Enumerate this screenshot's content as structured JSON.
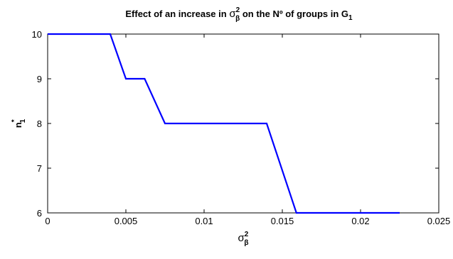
{
  "chart_data": {
    "type": "line",
    "title": {
      "prefix": "Effect of an increase in ",
      "sym": "σ",
      "sup": "2",
      "sub": "β",
      "suffix": " on the Nº of groups in G",
      "g_sub": "1"
    },
    "xlabel": {
      "sym": "σ",
      "sup": "2",
      "sub": "β"
    },
    "ylabel": {
      "base": "n",
      "sup": "*",
      "sub": "1"
    },
    "xlim": [
      0,
      0.025
    ],
    "ylim": [
      6,
      10
    ],
    "x_ticks": [
      0,
      0.005,
      0.01,
      0.015,
      0.02,
      0.025
    ],
    "x_tick_labels": [
      "0",
      "0.005",
      "0.01",
      "0.015",
      "0.02",
      "0.025"
    ],
    "y_ticks": [
      6,
      7,
      8,
      9,
      10
    ],
    "y_tick_labels": [
      "6",
      "7",
      "8",
      "9",
      "10"
    ],
    "grid": false,
    "series": [
      {
        "color": "#0000ff",
        "x": [
          0,
          0.004,
          0.005,
          0.0062,
          0.0075,
          0.014,
          0.0159,
          0.0225
        ],
        "y": [
          10,
          10,
          9,
          9,
          8,
          8,
          6,
          6
        ]
      }
    ]
  }
}
